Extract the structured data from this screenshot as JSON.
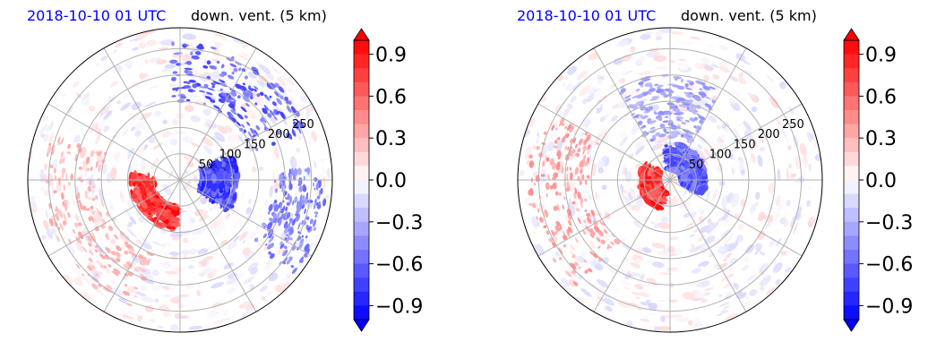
{
  "chart_data": [
    {
      "type": "heatmap",
      "projection": "polar",
      "title_left": "2018-10-10 01 UTC",
      "title_right": "down. vent. (5 km)",
      "radial_ticks": [
        "50",
        "100",
        "150",
        "200",
        "250"
      ],
      "radial_tick_values": [
        50,
        100,
        150,
        200,
        250
      ],
      "rmax": 290,
      "theta_gridlines_deg": [
        0,
        30,
        60,
        90,
        120,
        150,
        180,
        210,
        240,
        270,
        300,
        330
      ],
      "grid": true,
      "colorbar": {
        "position": "right",
        "vmin": -1.0,
        "vmax": 1.0,
        "levels": 20,
        "extend": "both",
        "ticks": [
          "0.9",
          "0.6",
          "0.3",
          "0.0",
          "−0.3",
          "−0.6",
          "−0.9"
        ],
        "tick_values": [
          0.9,
          0.6,
          0.3,
          0.0,
          -0.3,
          -0.6,
          -0.9
        ],
        "cmap": "bwr",
        "colors": {
          "negative": "#0000ff",
          "zero": "#ffffff",
          "positive": "#ff0000"
        }
      },
      "features": [
        {
          "sign": "positive",
          "shape": "arc",
          "r": [
            50,
            95
          ],
          "theta_deg": [
            175,
            265
          ],
          "strength": 1.0
        },
        {
          "sign": "negative",
          "shape": "arc",
          "r": [
            40,
            110
          ],
          "theta_deg": [
            -30,
            25
          ],
          "strength": 0.9
        },
        {
          "sign": "negative",
          "shape": "band",
          "r": [
            150,
            260
          ],
          "theta_deg": [
            20,
            95
          ],
          "strength": 0.75
        },
        {
          "sign": "positive",
          "shape": "band",
          "r": [
            150,
            260
          ],
          "theta_deg": [
            160,
            250
          ],
          "strength": 0.35
        },
        {
          "sign": "negative",
          "shape": "band",
          "r": [
            180,
            280
          ],
          "theta_deg": [
            -40,
            5
          ],
          "strength": 0.6
        }
      ]
    },
    {
      "type": "heatmap",
      "projection": "polar",
      "title_left": "2018-10-10 01 UTC",
      "title_right": "down. vent. (5 km)",
      "radial_ticks": [
        "50",
        "100",
        "150",
        "200",
        "250"
      ],
      "radial_tick_values": [
        50,
        100,
        150,
        200,
        250
      ],
      "rmax": 290,
      "theta_gridlines_deg": [
        0,
        30,
        60,
        90,
        120,
        150,
        180,
        210,
        240,
        270,
        300,
        330
      ],
      "grid": true,
      "colorbar": {
        "position": "right",
        "vmin": -1.0,
        "vmax": 1.0,
        "levels": 20,
        "extend": "both",
        "ticks": [
          "0.9",
          "0.6",
          "0.3",
          "0.0",
          "−0.3",
          "−0.6",
          "−0.9"
        ],
        "tick_values": [
          0.9,
          0.6,
          0.3,
          0.0,
          -0.3,
          -0.6,
          -0.9
        ],
        "cmap": "bwr",
        "colors": {
          "negative": "#0000ff",
          "zero": "#ffffff",
          "positive": "#ff0000"
        }
      },
      "features": [
        {
          "sign": "positive",
          "shape": "arc",
          "r": [
            20,
            60
          ],
          "theta_deg": [
            150,
            250
          ],
          "strength": 1.0
        },
        {
          "sign": "negative",
          "shape": "arc",
          "r": [
            20,
            70
          ],
          "theta_deg": [
            -20,
            100
          ],
          "strength": 0.8
        },
        {
          "sign": "negative",
          "shape": "band",
          "r": [
            80,
            200
          ],
          "theta_deg": [
            60,
            120
          ],
          "strength": 0.45
        },
        {
          "sign": "positive",
          "shape": "band",
          "r": [
            150,
            270
          ],
          "theta_deg": [
            150,
            230
          ],
          "strength": 0.45
        }
      ]
    }
  ]
}
